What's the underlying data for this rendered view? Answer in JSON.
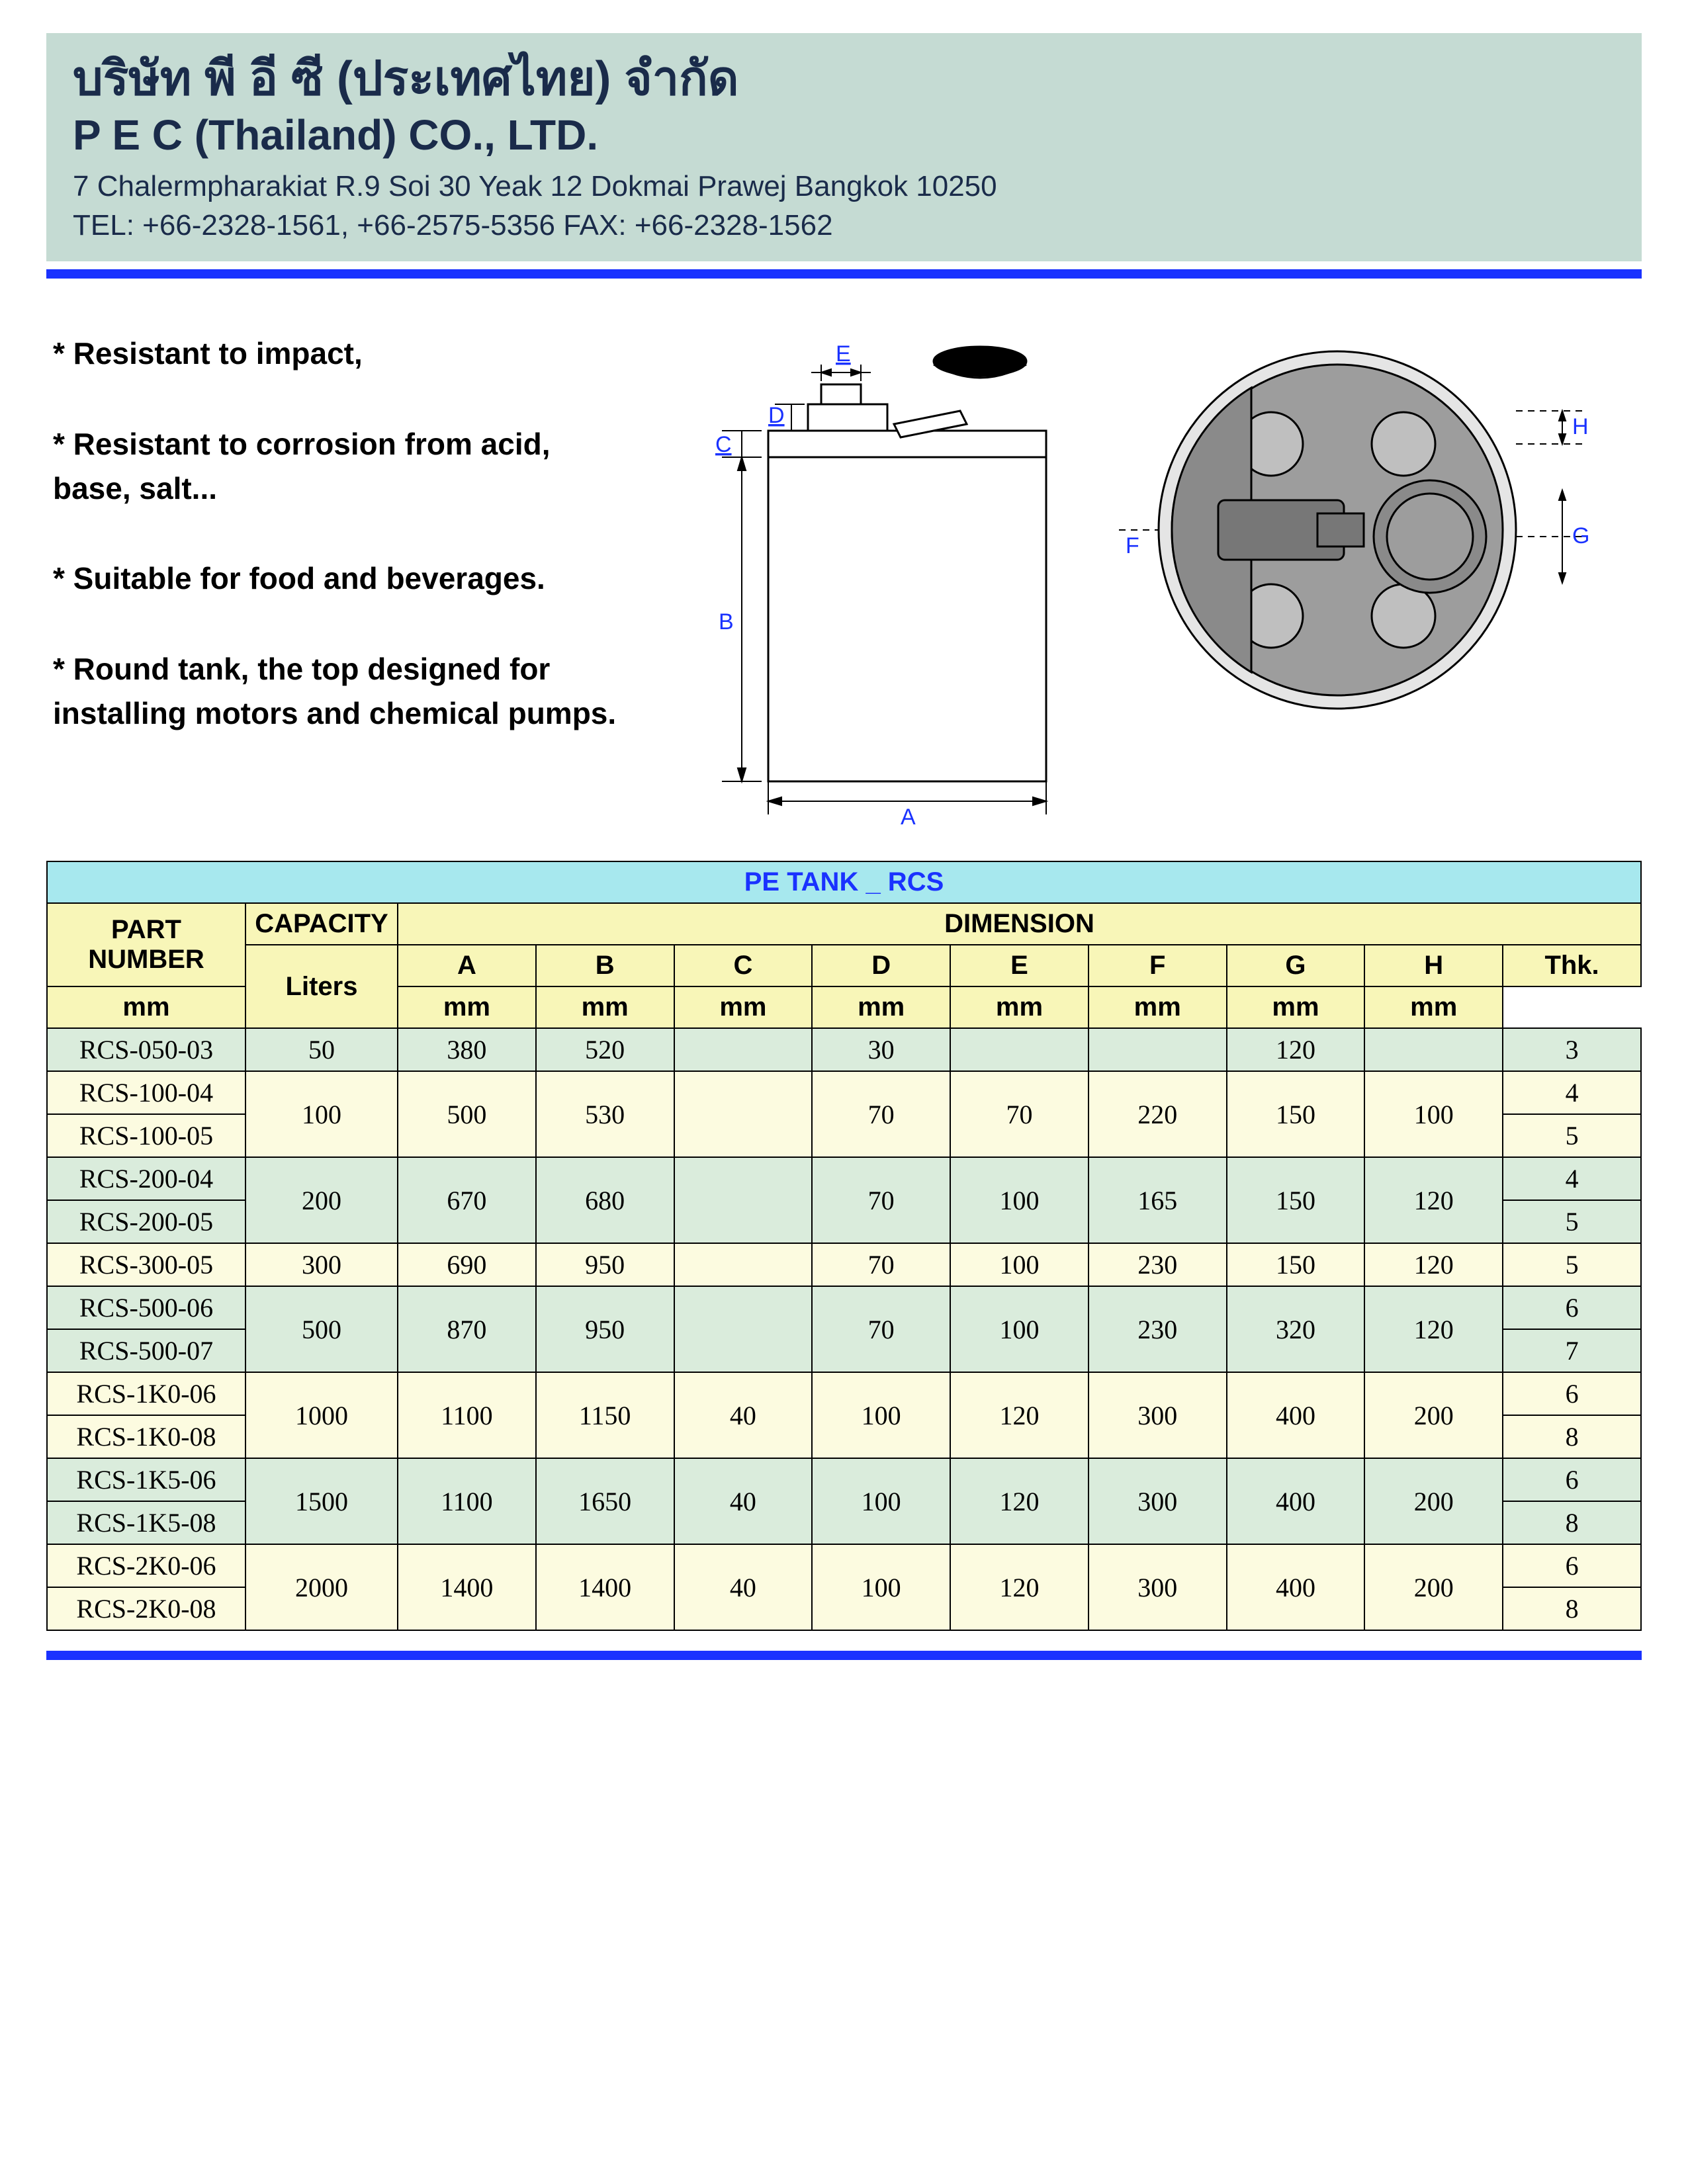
{
  "header": {
    "company_thai": "บริษัท พี อี ซี (ประเทศไทย) จำกัด",
    "company_en": "P E C (Thailand) CO., LTD.",
    "address": "7 Chalermpharakiat R.9 Soi 30 Yeak 12 Dokmai Prawej Bangkok 10250",
    "contact": "TEL: +66-2328-1561, +66-2575-5356 FAX: +66-2328-1562",
    "bg_color": "#c5dbd3",
    "text_color": "#1a2b4a",
    "rule_color": "#1a32ff"
  },
  "features": {
    "f1": "* Resistant to impact,",
    "f2": "* Resistant to corrosion from acid, base, salt...",
    "f3": "* Suitable for food and beverages.",
    "f4": "* Round tank, the top designed for installing motors and chemical pumps."
  },
  "diagram": {
    "labels": {
      "A": "A",
      "B": "B",
      "C": "C",
      "D": "D",
      "E": "E",
      "F": "F",
      "G": "G",
      "H": "H"
    },
    "label_color": "#1a32ff",
    "line_color": "#000000",
    "fill_gray": "#9d9d9d",
    "fill_light": "#e5e5e5"
  },
  "table": {
    "title": "PE TANK _ RCS",
    "title_bg": "#a7e8ee",
    "title_color": "#1a32ff",
    "header_bg": "#f8f6b8",
    "row_green": "#daecdc",
    "row_yellow": "#fcfbe0",
    "headers": {
      "part": "PART NUMBER",
      "cap": "CAPACITY",
      "dim": "DIMENSION",
      "A": "A",
      "B": "B",
      "C": "C",
      "D": "D",
      "E": "E",
      "F": "F",
      "G": "G",
      "H": "H",
      "Thk": "Thk."
    },
    "units": {
      "liters": "Liters",
      "mm": "mm"
    },
    "rows": [
      {
        "pn": "RCS-050-03",
        "cap": "50",
        "A": "380",
        "B": "520",
        "C": "",
        "D": "30",
        "E": "",
        "F": "",
        "G": "120",
        "H": "",
        "Thk": "3",
        "span": 1,
        "color": "green"
      },
      {
        "pn": "RCS-100-04",
        "cap": "100",
        "A": "500",
        "B": "530",
        "C": "",
        "D": "70",
        "E": "70",
        "F": "220",
        "G": "150",
        "H": "100",
        "Thk": "4",
        "span": 2,
        "color": "yellow"
      },
      {
        "pn": "RCS-100-05",
        "Thk": "5"
      },
      {
        "pn": "RCS-200-04",
        "cap": "200",
        "A": "670",
        "B": "680",
        "C": "",
        "D": "70",
        "E": "100",
        "F": "165",
        "G": "150",
        "H": "120",
        "Thk": "4",
        "span": 2,
        "color": "green"
      },
      {
        "pn": "RCS-200-05",
        "Thk": "5"
      },
      {
        "pn": "RCS-300-05",
        "cap": "300",
        "A": "690",
        "B": "950",
        "C": "",
        "D": "70",
        "E": "100",
        "F": "230",
        "G": "150",
        "H": "120",
        "Thk": "5",
        "span": 1,
        "color": "yellow"
      },
      {
        "pn": "RCS-500-06",
        "cap": "500",
        "A": "870",
        "B": "950",
        "C": "",
        "D": "70",
        "E": "100",
        "F": "230",
        "G": "320",
        "H": "120",
        "Thk": "6",
        "span": 2,
        "color": "green"
      },
      {
        "pn": "RCS-500-07",
        "Thk": "7"
      },
      {
        "pn": "RCS-1K0-06",
        "cap": "1000",
        "A": "1100",
        "B": "1150",
        "C": "40",
        "D": "100",
        "E": "120",
        "F": "300",
        "G": "400",
        "H": "200",
        "Thk": "6",
        "span": 2,
        "color": "yellow"
      },
      {
        "pn": "RCS-1K0-08",
        "Thk": "8"
      },
      {
        "pn": "RCS-1K5-06",
        "cap": "1500",
        "A": "1100",
        "B": "1650",
        "C": "40",
        "D": "100",
        "E": "120",
        "F": "300",
        "G": "400",
        "H": "200",
        "Thk": "6",
        "span": 2,
        "color": "green"
      },
      {
        "pn": "RCS-1K5-08",
        "Thk": "8"
      },
      {
        "pn": "RCS-2K0-06",
        "cap": "2000",
        "A": "1400",
        "B": "1400",
        "C": "40",
        "D": "100",
        "E": "120",
        "F": "300",
        "G": "400",
        "H": "200",
        "Thk": "6",
        "span": 2,
        "color": "yellow"
      },
      {
        "pn": "RCS-2K0-08",
        "Thk": "8"
      }
    ]
  }
}
